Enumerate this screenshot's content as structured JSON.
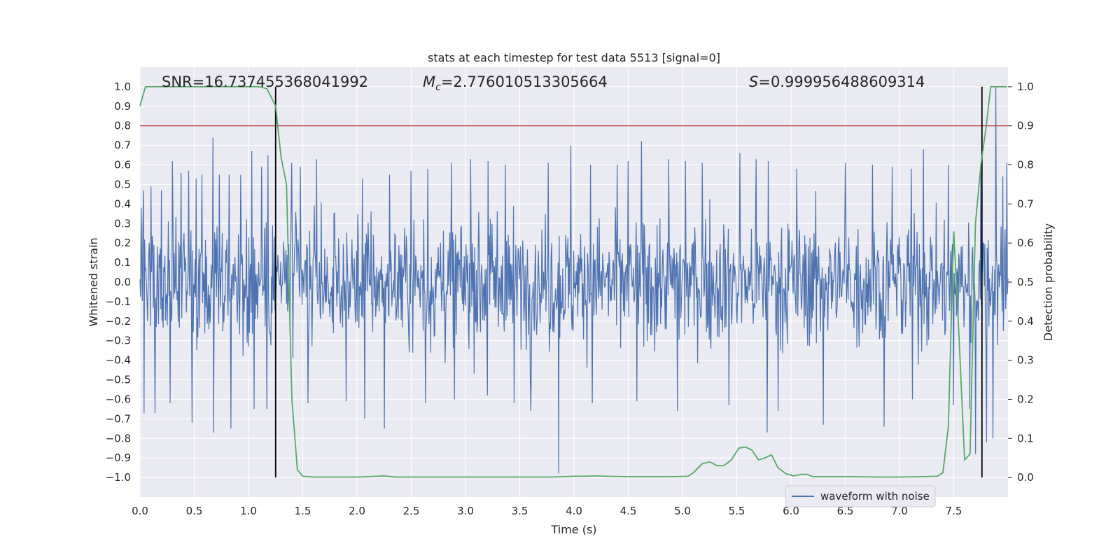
{
  "chart_data": {
    "type": "line",
    "title": "stats at each timestep for test data 5513 [signal=0]",
    "xlabel": "Time (s)",
    "ylabel": "Whitened strain",
    "y2label": "Detection probability",
    "xlim": [
      0,
      8
    ],
    "ylim": [
      -1.1,
      1.1
    ],
    "y2lim": [
      -0.05,
      1.05
    ],
    "x_ticks": [
      "0.0",
      "0.5",
      "1.0",
      "1.5",
      "2.0",
      "2.5",
      "3.0",
      "3.5",
      "4.0",
      "4.5",
      "5.0",
      "5.5",
      "6.0",
      "6.5",
      "7.0",
      "7.5"
    ],
    "y_ticks": [
      "1.0",
      "0.9",
      "0.8",
      "0.7",
      "0.6",
      "0.5",
      "0.4",
      "0.3",
      "0.2",
      "0.1",
      "0.0",
      "−0.1",
      "−0.2",
      "−0.3",
      "−0.4",
      "−0.5",
      "−0.6",
      "−0.7",
      "−0.8",
      "−0.9",
      "−1.0"
    ],
    "y2_ticks": [
      "1.0",
      "0.9",
      "0.8",
      "0.7",
      "0.6",
      "0.5",
      "0.4",
      "0.3",
      "0.2",
      "0.1",
      "0.0"
    ],
    "grid": true,
    "legend": {
      "position": "lower-right",
      "entries": [
        "waveform with noise"
      ]
    },
    "annotations": {
      "snr": "SNR=16.737455368041992",
      "mc_symbol": "M",
      "mc_sub": "c",
      "mc_value": "=2.776010513305664",
      "s_symbol": "S",
      "s_value": "=0.999956488609314"
    },
    "threshold_line": {
      "y2": 0.9,
      "color": "#c44e52"
    },
    "vertical_markers": [
      {
        "x": 1.25,
        "y2_range": [
          0.0,
          1.0
        ]
      },
      {
        "x": 7.76,
        "y2_range": [
          0.0,
          1.0
        ]
      }
    ],
    "waveform": {
      "name": "waveform with noise",
      "color": "#4c72b0",
      "x_range": [
        0,
        8
      ],
      "typical_amplitude": 0.26,
      "peaks": [
        [
          0.03,
          0.47
        ],
        [
          0.1,
          0.49
        ],
        [
          0.2,
          0.47
        ],
        [
          0.3,
          0.62
        ],
        [
          0.38,
          0.56
        ],
        [
          0.45,
          0.57
        ],
        [
          0.52,
          0.53
        ],
        [
          0.57,
          0.55
        ],
        [
          0.67,
          0.74
        ],
        [
          0.73,
          0.55
        ],
        [
          0.82,
          0.55
        ],
        [
          0.93,
          0.55
        ],
        [
          1.03,
          0.67
        ],
        [
          1.12,
          0.59
        ],
        [
          1.18,
          0.65
        ],
        [
          1.4,
          0.61
        ],
        [
          1.48,
          0.59
        ],
        [
          1.63,
          0.63
        ],
        [
          1.9,
          0.59
        ],
        [
          2.05,
          0.53
        ],
        [
          2.3,
          0.55
        ],
        [
          2.5,
          0.57
        ],
        [
          2.65,
          0.58
        ],
        [
          2.87,
          0.61
        ],
        [
          3.05,
          0.63
        ],
        [
          3.21,
          0.62
        ],
        [
          3.37,
          0.6
        ],
        [
          3.6,
          0.59
        ],
        [
          3.76,
          0.61
        ],
        [
          3.97,
          0.7
        ],
        [
          4.15,
          0.6
        ],
        [
          4.4,
          0.6
        ],
        [
          4.5,
          0.62
        ],
        [
          4.62,
          0.72
        ],
        [
          4.87,
          0.63
        ],
        [
          5.03,
          0.62
        ],
        [
          5.18,
          0.61
        ],
        [
          5.53,
          0.66
        ],
        [
          5.68,
          0.63
        ],
        [
          5.79,
          0.62
        ],
        [
          6.05,
          0.58
        ],
        [
          6.3,
          0.6
        ],
        [
          6.5,
          0.61
        ],
        [
          6.75,
          0.6
        ],
        [
          6.93,
          0.59
        ],
        [
          7.11,
          0.58
        ],
        [
          7.22,
          0.68
        ],
        [
          7.45,
          0.6
        ],
        [
          7.75,
          0.57
        ],
        [
          7.86,
          0.6
        ],
        [
          7.89,
          1.0
        ],
        [
          7.95,
          0.54
        ],
        [
          7.99,
          0.61
        ]
      ],
      "troughs": [
        [
          0.04,
          -0.67
        ],
        [
          0.14,
          -0.67
        ],
        [
          0.28,
          -0.62
        ],
        [
          0.48,
          -0.72
        ],
        [
          0.68,
          -0.77
        ],
        [
          0.84,
          -0.75
        ],
        [
          1.05,
          -0.65
        ],
        [
          1.17,
          -0.65
        ],
        [
          1.55,
          -0.62
        ],
        [
          1.9,
          -0.61
        ],
        [
          2.07,
          -0.7
        ],
        [
          2.25,
          -0.75
        ],
        [
          2.63,
          -0.62
        ],
        [
          2.9,
          -0.6
        ],
        [
          3.2,
          -0.58
        ],
        [
          3.45,
          -0.62
        ],
        [
          3.6,
          -0.66
        ],
        [
          3.86,
          -0.98
        ],
        [
          4.17,
          -0.62
        ],
        [
          4.58,
          -0.61
        ],
        [
          4.95,
          -0.66
        ],
        [
          5.43,
          -0.63
        ],
        [
          5.78,
          -0.77
        ],
        [
          5.88,
          -0.66
        ],
        [
          6.3,
          -0.73
        ],
        [
          6.86,
          -0.74
        ],
        [
          7.12,
          -0.6
        ],
        [
          7.5,
          -0.63
        ],
        [
          7.65,
          -0.65
        ],
        [
          7.7,
          -0.88
        ],
        [
          7.8,
          -0.82
        ],
        [
          7.86,
          -0.8
        ]
      ]
    },
    "detection_probability": {
      "color": "#55a868",
      "x": [
        0,
        0.05,
        0.1,
        0.2,
        0.4,
        0.6,
        0.8,
        1.0,
        1.1,
        1.17,
        1.25,
        1.3,
        1.35,
        1.4,
        1.45,
        1.5,
        1.6,
        1.8,
        2.0,
        2.1,
        2.25,
        2.35,
        2.5,
        3.0,
        3.5,
        3.8,
        3.9,
        4.0,
        4.1,
        4.2,
        4.3,
        4.5,
        4.7,
        4.9,
        5.05,
        5.1,
        5.18,
        5.25,
        5.32,
        5.38,
        5.45,
        5.52,
        5.58,
        5.64,
        5.7,
        5.76,
        5.82,
        5.88,
        5.95,
        6.02,
        6.1,
        6.15,
        6.2,
        6.3,
        6.4,
        6.6,
        6.8,
        7.0,
        7.2,
        7.35,
        7.4,
        7.45,
        7.5,
        7.55,
        7.6,
        7.65,
        7.7,
        7.75,
        7.8,
        7.84,
        7.88,
        7.92,
        7.99
      ],
      "y": [
        0.95,
        1.0,
        1.0,
        1.0,
        1.0,
        1.0,
        1.0,
        1.0,
        1.0,
        0.995,
        0.95,
        0.82,
        0.75,
        0.2,
        0.02,
        0.003,
        0.001,
        0.001,
        0.001,
        0.002,
        0.004,
        0.001,
        0.001,
        0.001,
        0.001,
        0.001,
        0.002,
        0.003,
        0.003,
        0.004,
        0.003,
        0.002,
        0.002,
        0.002,
        0.003,
        0.012,
        0.035,
        0.04,
        0.03,
        0.03,
        0.045,
        0.075,
        0.078,
        0.07,
        0.045,
        0.05,
        0.058,
        0.025,
        0.01,
        0.004,
        0.008,
        0.008,
        0.002,
        0.002,
        0.002,
        0.002,
        0.001,
        0.001,
        0.002,
        0.003,
        0.012,
        0.13,
        0.63,
        0.35,
        0.045,
        0.06,
        0.65,
        0.8,
        0.9,
        1.0,
        1.0,
        1.0,
        1.0
      ]
    }
  }
}
